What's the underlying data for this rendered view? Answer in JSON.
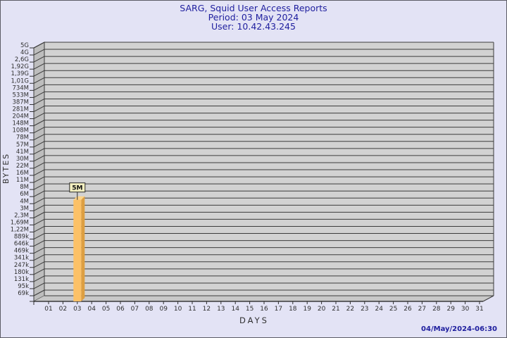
{
  "header": {
    "title": "SARG, Squid User Access Reports",
    "period": "Period: 03 May 2024",
    "user": "User: 10.42.43.245"
  },
  "footer": {
    "generated": "04/May/2024-06:30"
  },
  "colors": {
    "page_background": "#e3e3f5",
    "frame_border": "#5c5c66",
    "title_text": "#1e1e9e",
    "axis_text": "#2f2f2f",
    "plot_background": "#d2d2d2",
    "left_wall": "#bdbdbd",
    "floor": "#c8c8c8",
    "gridline": "#3c3c3c",
    "baseline": "#1a1a1a",
    "bar_front": "#fcc167",
    "bar_side": "#dd9f42",
    "bar_top": "#fdd488",
    "annotation_background": "#f3efc0",
    "annotation_border": "#2a2a2a",
    "annotation_text": "#111111"
  },
  "chart_data": {
    "type": "bar",
    "title": "SARG, Squid User Access Reports",
    "subtitle": "Period: 03 May 2024",
    "subtitle2": "User: 10.42.43.245",
    "xlabel": "DAYS",
    "ylabel": "BYTES",
    "scale": "log",
    "grid": "horizontal",
    "legend": "none",
    "x_categories": [
      "01",
      "02",
      "03",
      "04",
      "05",
      "06",
      "07",
      "08",
      "09",
      "10",
      "11",
      "12",
      "13",
      "14",
      "15",
      "16",
      "17",
      "18",
      "19",
      "20",
      "21",
      "22",
      "23",
      "24",
      "25",
      "26",
      "27",
      "28",
      "29",
      "30",
      "31"
    ],
    "y_tick_labels": [
      "5G",
      "4G",
      "2,6G",
      "1,92G",
      "1,39G",
      "1,01G",
      "734M",
      "533M",
      "387M",
      "281M",
      "204M",
      "148M",
      "108M",
      "78M",
      "57M",
      "41M",
      "30M",
      "22M",
      "16M",
      "11M",
      "8M",
      "6M",
      "4M",
      "3M",
      "2,3M",
      "1,69M",
      "1,22M",
      "889k",
      "646k",
      "469k",
      "341k",
      "247k",
      "180k",
      "131k",
      "95k",
      "69k"
    ],
    "bars": [
      {
        "day": "03",
        "label": "5M",
        "value_bytes": 5000000
      }
    ]
  }
}
